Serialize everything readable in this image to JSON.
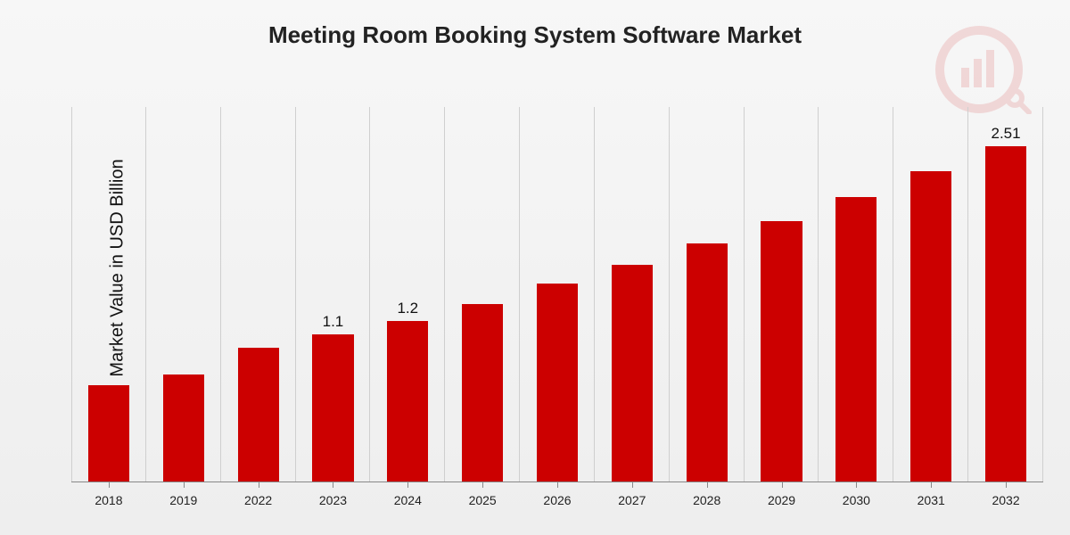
{
  "chart": {
    "type": "bar",
    "title": "Meeting Room Booking System Software Market",
    "ylabel": "Market Value in USD Billion",
    "categories": [
      "2018",
      "2019",
      "2022",
      "2023",
      "2024",
      "2025",
      "2026",
      "2027",
      "2028",
      "2029",
      "2030",
      "2031",
      "2032"
    ],
    "values": [
      0.72,
      0.8,
      1.0,
      1.1,
      1.2,
      1.33,
      1.48,
      1.62,
      1.78,
      1.95,
      2.13,
      2.32,
      2.51
    ],
    "value_labels": [
      "",
      "",
      "",
      "1.1",
      "1.2",
      "",
      "",
      "",
      "",
      "",
      "",
      "",
      "2.51"
    ],
    "ymax": 2.8,
    "bar_color": "#cc0000",
    "grid_color": "#cfcfcf",
    "axis_color": "#888888",
    "text_color": "#111111",
    "bg_gradient_top": "#f7f7f7",
    "bg_gradient_bottom": "#eeeeee",
    "title_fontsize": 26,
    "ylabel_fontsize": 20,
    "xlabel_fontsize": 14,
    "value_label_fontsize": 17,
    "bar_width_ratio": 0.55,
    "logo_opacity": 0.12
  }
}
